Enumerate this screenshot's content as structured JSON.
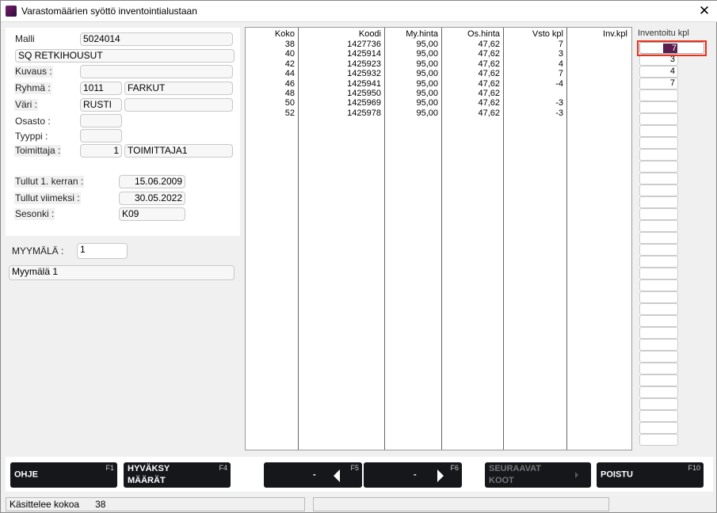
{
  "window": {
    "title": "Varastomäärien syöttö inventointialustaan",
    "close": "✕"
  },
  "product": {
    "malli_label": "Malli",
    "malli": "5024014",
    "name": "SQ RETKIHOUSUT",
    "kuvaus_label": "Kuvaus :",
    "kuvaus": "",
    "ryhma_label": "Ryhmä :",
    "ryhma_code": "1011",
    "ryhma_name": "FARKUT",
    "vari_label": "Väri :",
    "vari_code": "RUSTI",
    "vari_name": "",
    "osasto_label": "Osasto :",
    "osasto": "",
    "tyyppi_label": "Tyyppi :",
    "tyyppi": "",
    "toimittaja_label": "Toimittaja :",
    "toimittaja_code": "1",
    "toimittaja_name": "TOIMITTAJA1",
    "tullut1_label": "Tullut 1. kerran :",
    "tullut1": "15.06.2009",
    "tullutv_label": "Tullut viimeksi :",
    "tullutv": "30.05.2022",
    "sesonki_label": "Sesonki :",
    "sesonki": "K09"
  },
  "store": {
    "label": "MYYMÄLÄ :",
    "code": "1",
    "name": "Myymälä 1"
  },
  "grid": {
    "headers": [
      "Koko",
      "Koodi",
      "My.hinta",
      "Os.hinta",
      "Vsto kpl",
      "Inv.kpl"
    ],
    "rows": [
      [
        "38",
        "1427736",
        "95,00",
        "47,62",
        "7",
        ""
      ],
      [
        "40",
        "1425914",
        "95,00",
        "47,62",
        "3",
        ""
      ],
      [
        "42",
        "1425923",
        "95,00",
        "47,62",
        "4",
        ""
      ],
      [
        "44",
        "1425932",
        "95,00",
        "47,62",
        "7",
        ""
      ],
      [
        "46",
        "1425941",
        "95,00",
        "47,62",
        "-4",
        ""
      ],
      [
        "48",
        "1425950",
        "95,00",
        "47,62",
        "",
        ""
      ],
      [
        "50",
        "1425969",
        "95,00",
        "47,62",
        "-3",
        ""
      ],
      [
        "52",
        "1425978",
        "95,00",
        "47,62",
        "-3",
        ""
      ]
    ]
  },
  "inventory": {
    "header": "Inventoitu kpl",
    "values": [
      "7",
      "3",
      "4",
      "7",
      "",
      "",
      "",
      "",
      "",
      "",
      "",
      "",
      "",
      "",
      "",
      "",
      "",
      "",
      "",
      "",
      "",
      "",
      "",
      "",
      "",
      "",
      "",
      "",
      "",
      "",
      "",
      "",
      "",
      ""
    ],
    "active_index": 0
  },
  "buttons": [
    {
      "label": "OHJE",
      "key": "F1"
    },
    {
      "label": "HYVÄKSY MÄÄRÄT",
      "key": "F4"
    },
    {
      "label": "-",
      "key": "F5"
    },
    {
      "label": "-",
      "key": "F6"
    },
    {
      "label": "SEURAAVAT KOOT",
      "key": "",
      "disabled": true
    },
    {
      "label": "POISTU",
      "key": "F10"
    }
  ],
  "status": {
    "label": "Käsittelee kokoa",
    "value": "38"
  },
  "colors": {
    "accent": "#5a1e4e",
    "button_bg": "#16171b",
    "highlight": "#e8321e"
  }
}
